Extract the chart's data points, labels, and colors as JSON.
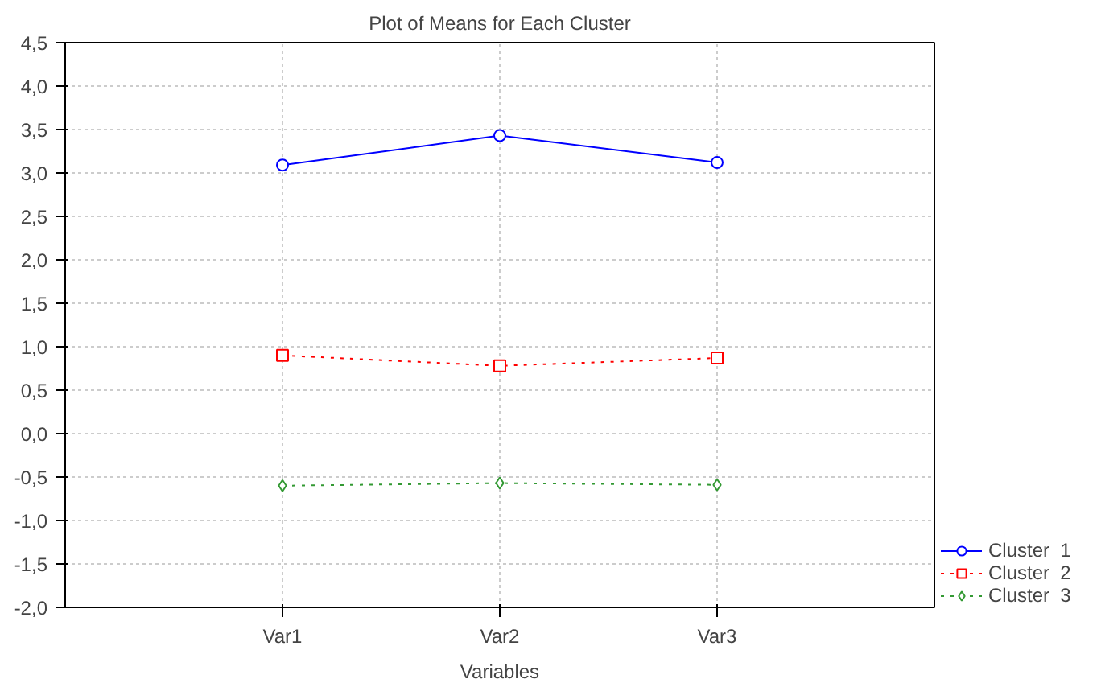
{
  "chart_data": {
    "type": "line",
    "title": "Plot of Means for Each Cluster",
    "xlabel": "Variables",
    "categories": [
      "Var1",
      "Var2",
      "Var3"
    ],
    "series": [
      {
        "name": "Cluster  1",
        "color": "#0000ff",
        "values": [
          3.09,
          3.43,
          3.12
        ],
        "marker": "circle",
        "line_style": "solid"
      },
      {
        "name": "Cluster  2",
        "color": "#ff0000",
        "values": [
          0.9,
          0.78,
          0.87
        ],
        "marker": "square",
        "line_style": "dotted"
      },
      {
        "name": "Cluster  3",
        "color": "#339933",
        "values": [
          -0.6,
          -0.57,
          -0.59
        ],
        "marker": "diamond",
        "line_style": "dotted"
      }
    ],
    "ylim": [
      -2.0,
      4.5
    ],
    "yticks": [
      {
        "value": -2.0,
        "label": "-2,0"
      },
      {
        "value": -1.5,
        "label": "-1,5"
      },
      {
        "value": -1.0,
        "label": "-1,0"
      },
      {
        "value": -0.5,
        "label": "-0,5"
      },
      {
        "value": 0.0,
        "label": "0,0"
      },
      {
        "value": 0.5,
        "label": "0,5"
      },
      {
        "value": 1.0,
        "label": "1,0"
      },
      {
        "value": 1.5,
        "label": "1,5"
      },
      {
        "value": 2.0,
        "label": "2,0"
      },
      {
        "value": 2.5,
        "label": "2,5"
      },
      {
        "value": 3.0,
        "label": "3,0"
      },
      {
        "value": 3.5,
        "label": "3,5"
      },
      {
        "value": 4.0,
        "label": "4,0"
      },
      {
        "value": 4.5,
        "label": "4,5"
      }
    ],
    "grid": true,
    "legend": "bottom right"
  }
}
